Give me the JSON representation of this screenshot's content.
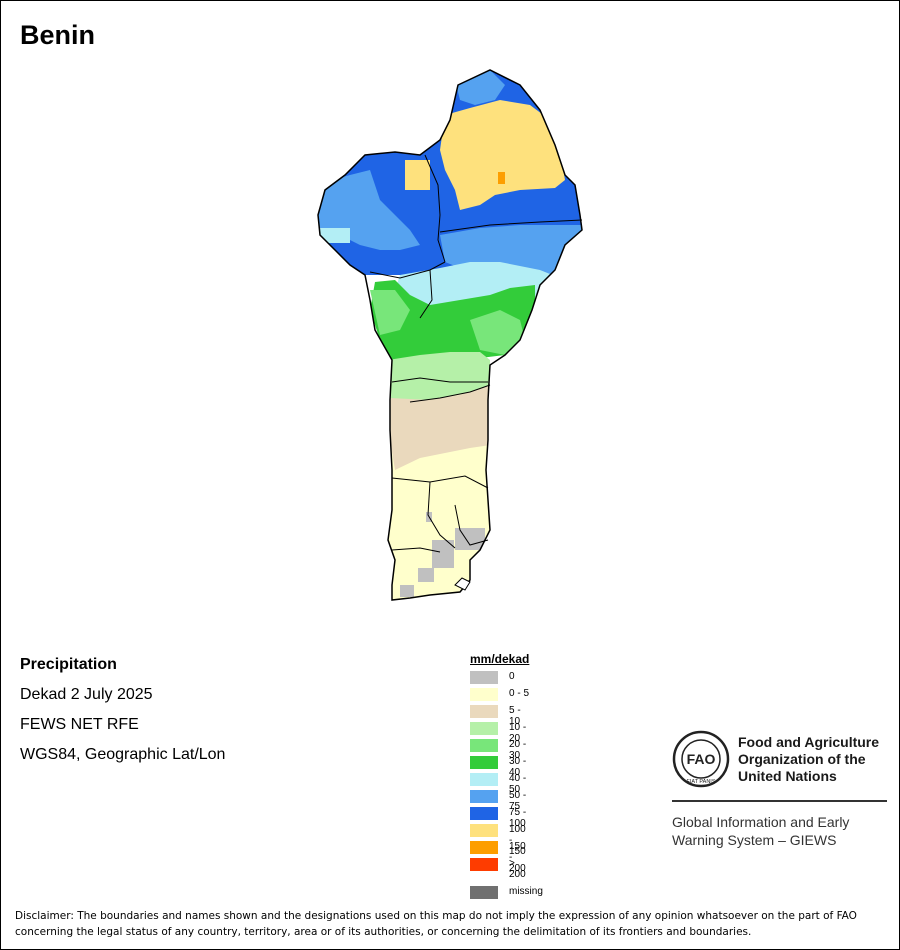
{
  "map": {
    "title": "Benin",
    "colors": {
      "c0": "#c0c0c0",
      "c0_5": "#ffffcc",
      "c5_10": "#ead9bd",
      "c10_20": "#b5f0a8",
      "c20_30": "#78e67a",
      "c30_40": "#33cc3a",
      "c40_50": "#b3eef5",
      "c50_75": "#55a2f0",
      "c75_100": "#1f64e5",
      "c100_150": "#fee17d",
      "c150_200": "#fd9e00",
      "c200": "#fe3c00",
      "missing": "#707070",
      "border": "#000000"
    }
  },
  "info": {
    "variable": "Precipitation",
    "period": "Dekad 2 July 2025",
    "source": "FEWS NET RFE",
    "projection": "WGS84, Geographic Lat/Lon"
  },
  "legend": {
    "title": "mm/dekad",
    "items": [
      {
        "label": "0",
        "color": "#c0c0c0"
      },
      {
        "label": "0 - 5",
        "color": "#ffffcc"
      },
      {
        "label": "5 - 10",
        "color": "#ead9bd"
      },
      {
        "label": "10 - 20",
        "color": "#b5f0a8"
      },
      {
        "label": "20 - 30",
        "color": "#78e67a"
      },
      {
        "label": "30 - 40",
        "color": "#33cc3a"
      },
      {
        "label": "40 - 50",
        "color": "#b3eef5"
      },
      {
        "label": "50 - 75",
        "color": "#55a2f0"
      },
      {
        "label": "75 - 100",
        "color": "#1f64e5"
      },
      {
        "label": "100 - 150",
        "color": "#fee17d"
      },
      {
        "label": "150 - 200",
        "color": "#fd9e00"
      },
      {
        "label": "> 200",
        "color": "#fe3c00"
      }
    ],
    "missing": {
      "label": "missing",
      "color": "#707070"
    }
  },
  "logo": {
    "emblem_text": "FAO",
    "emblem_motto": "FIAT PANIS",
    "org_line1": "Food and Agriculture",
    "org_line2": "Organization of the",
    "org_line3": "United Nations",
    "program_line1": "Global Information and Early",
    "program_line2": "Warning System – GIEWS"
  },
  "disclaimer": {
    "line1": "Disclaimer: The boundaries and names shown and the designations used on this map do not imply the expression of any opinion whatsoever on the part of FAO",
    "line2": "concerning the legal status of any country, territory, area or of its authorities, or concerning the delimitation of its frontiers and boundaries."
  }
}
